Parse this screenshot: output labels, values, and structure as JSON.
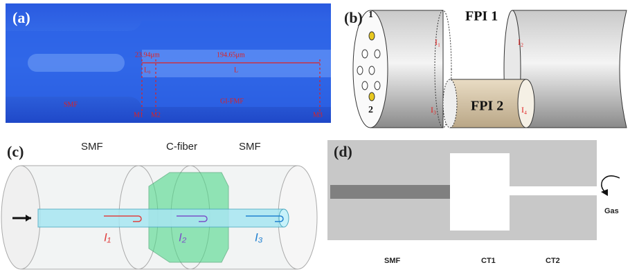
{
  "panel_a": {
    "label": "(a)",
    "annotations": [
      "23.94μm",
      "194.65μm",
      "L₀",
      "L",
      "SMF",
      "GI-FMF",
      "M1",
      "M2",
      "M3"
    ]
  },
  "panel_b": {
    "label": "(b)",
    "annotations": [
      "FPI 1",
      "FPI 2",
      "1",
      "2",
      "I₁",
      "I₂",
      "I₃",
      "I₄"
    ]
  },
  "panel_c": {
    "label": "(c)",
    "annotations": [
      "SMF",
      "C-fiber",
      "SMF",
      "I₁",
      "I₂",
      "I₃"
    ]
  },
  "panel_d": {
    "label": "(d)",
    "annotations": [
      "SMF",
      "CT1",
      "CT2",
      "Gas"
    ]
  }
}
